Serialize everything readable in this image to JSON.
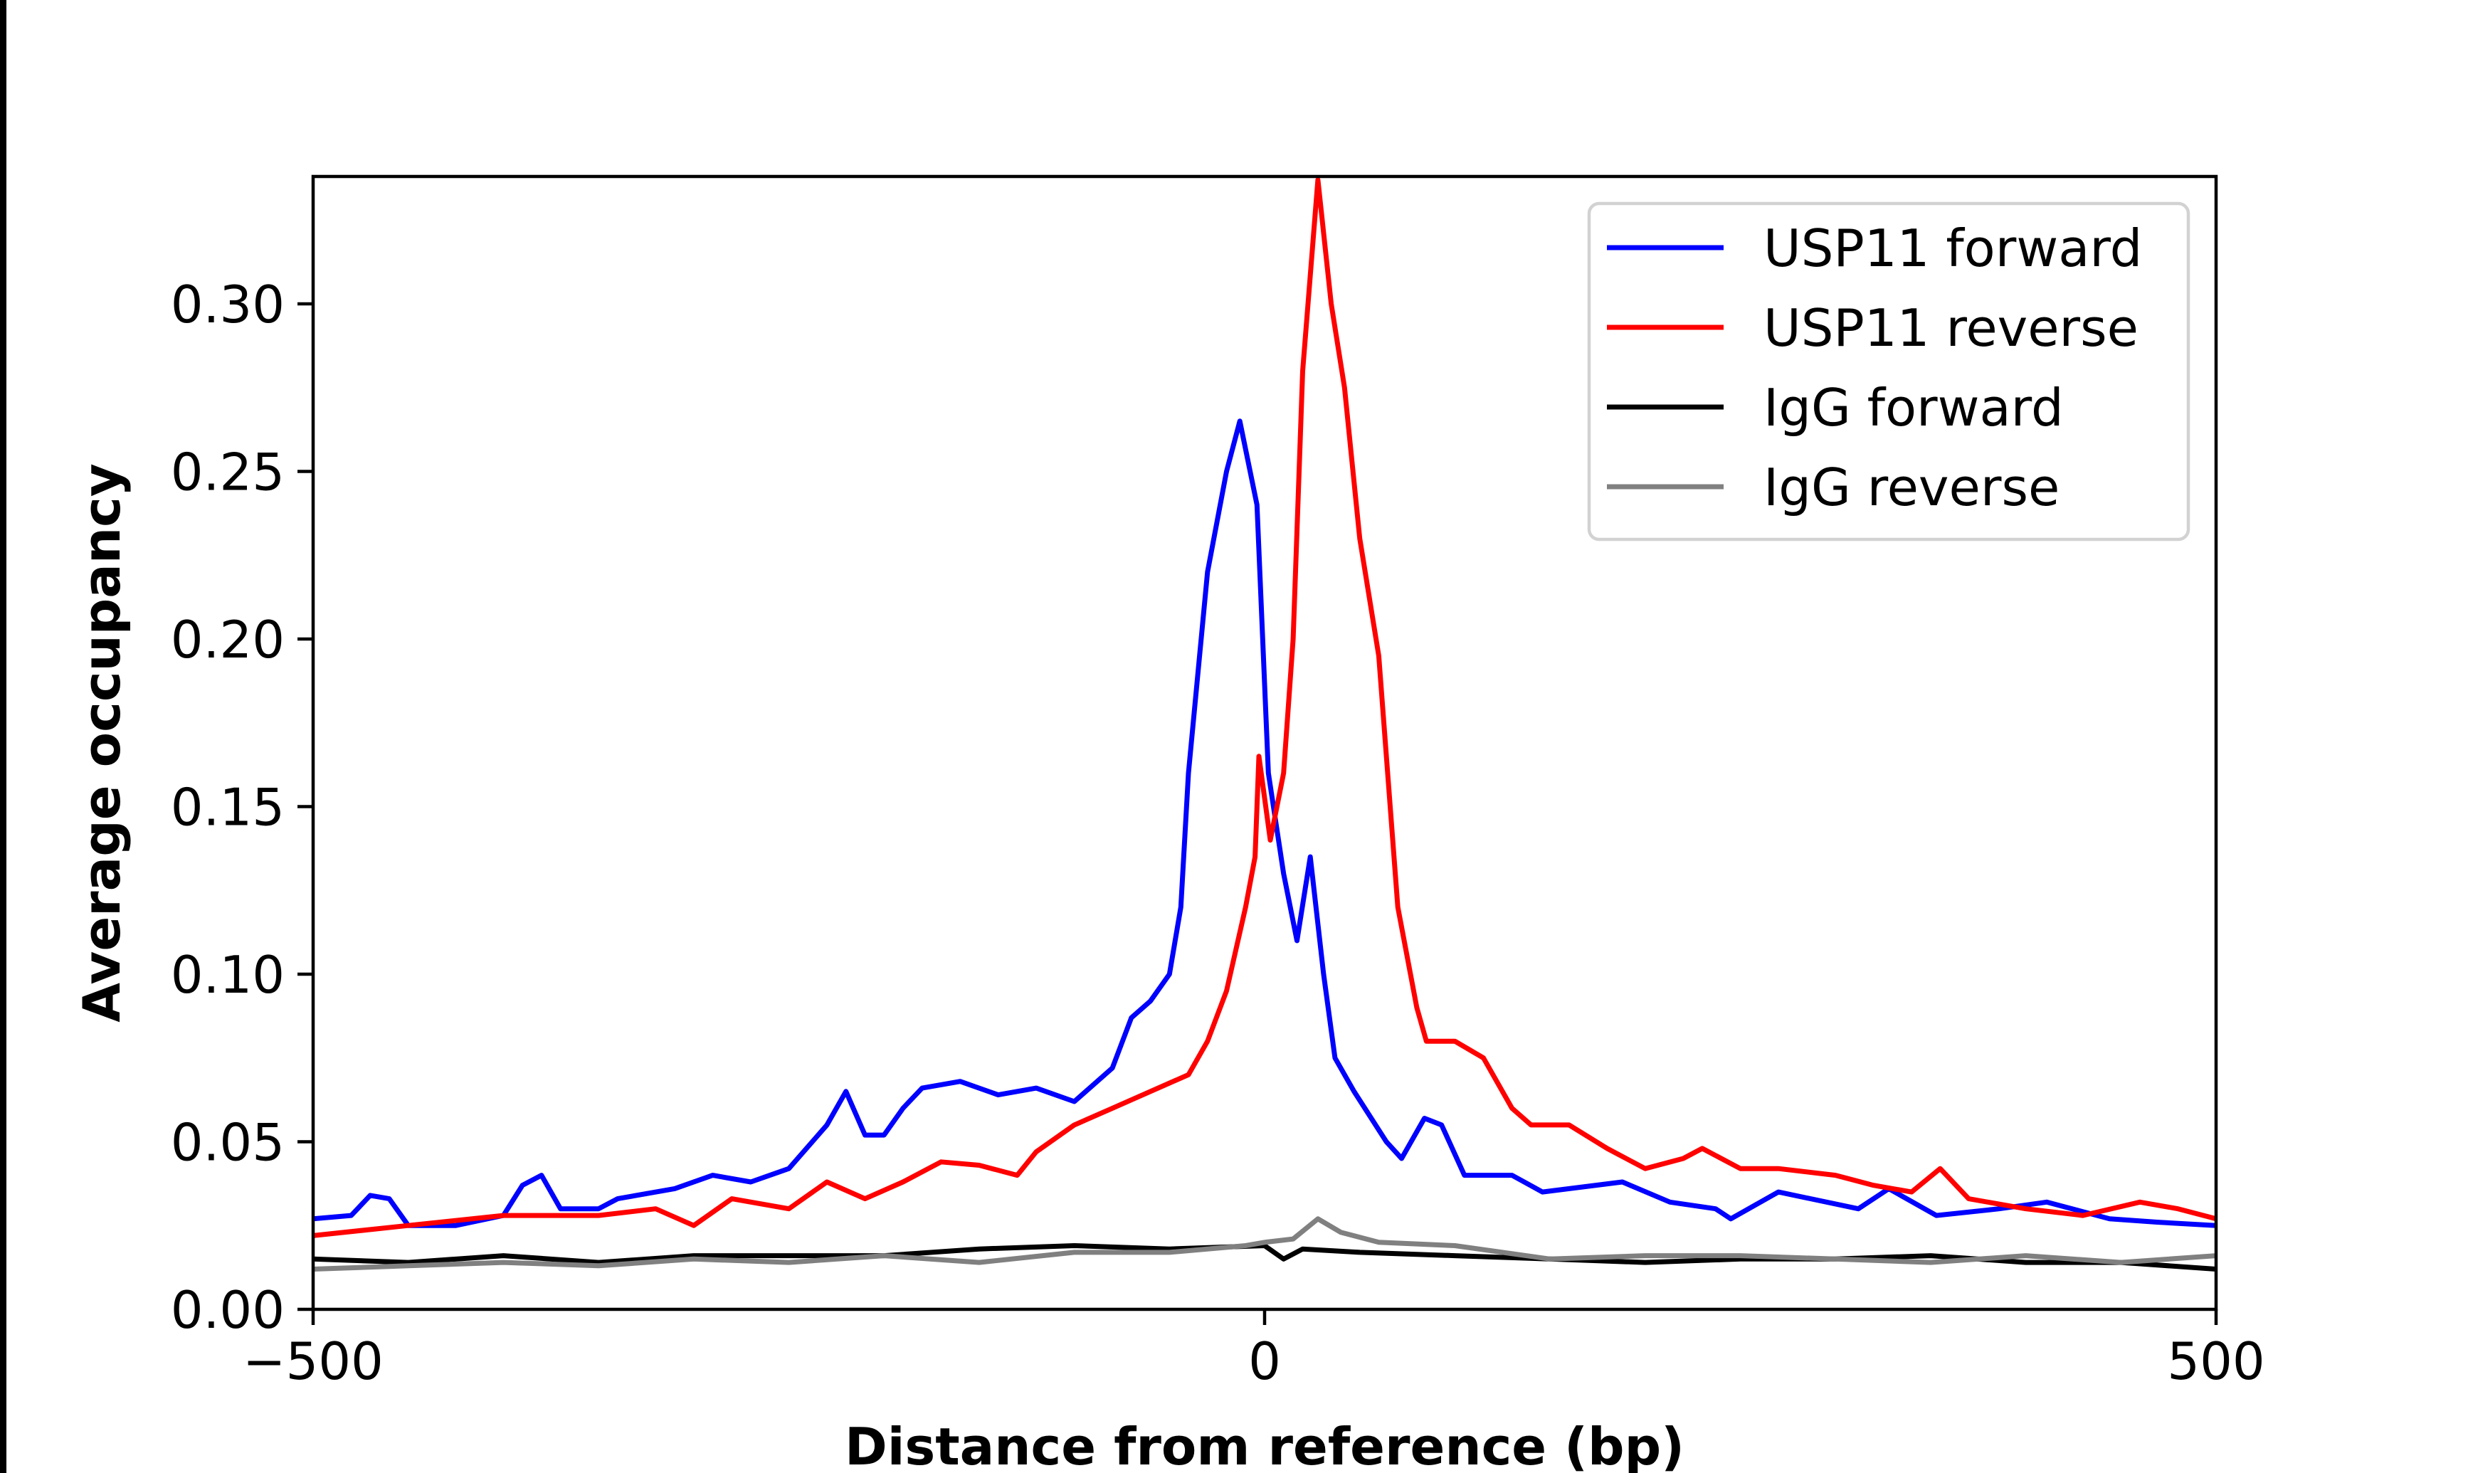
{
  "chart_data": {
    "type": "line",
    "title": "",
    "xlabel": "Distance from reference (bp)",
    "ylabel": "Average occupancy",
    "xlim": [
      -500,
      500
    ],
    "ylim": [
      0,
      0.338
    ],
    "xticks": [
      -500,
      0,
      500
    ],
    "xtick_labels": [
      "−500",
      "0",
      "500"
    ],
    "yticks": [
      0,
      0.05,
      0.1,
      0.15,
      0.2,
      0.25,
      0.3
    ],
    "ytick_labels": [
      "0.00",
      "0.05",
      "0.10",
      "0.15",
      "0.20",
      "0.25",
      "0.30"
    ],
    "grid": false,
    "legend_position": "top-right",
    "series": [
      {
        "name": "USP11 forward",
        "color": "#0000ff",
        "x": [
          -500,
          -480,
          -470,
          -460,
          -450,
          -425,
          -400,
          -390,
          -380,
          -370,
          -350,
          -340,
          -310,
          -290,
          -270,
          -250,
          -230,
          -220,
          -210,
          -200,
          -190,
          -180,
          -160,
          -140,
          -120,
          -100,
          -80,
          -70,
          -60,
          -50,
          -44,
          -40,
          -30,
          -20,
          -13,
          -4,
          2,
          10,
          17,
          24,
          31,
          37,
          47,
          64,
          72,
          84,
          93,
          105,
          130,
          146,
          188,
          213,
          237,
          245,
          270,
          312,
          328,
          353,
          386,
          411,
          444,
          469,
          500
        ],
        "y": [
          0.027,
          0.028,
          0.034,
          0.033,
          0.025,
          0.025,
          0.028,
          0.037,
          0.04,
          0.03,
          0.03,
          0.033,
          0.036,
          0.04,
          0.038,
          0.042,
          0.055,
          0.065,
          0.052,
          0.052,
          0.06,
          0.066,
          0.068,
          0.064,
          0.066,
          0.062,
          0.072,
          0.087,
          0.092,
          0.1,
          0.12,
          0.16,
          0.22,
          0.25,
          0.265,
          0.24,
          0.16,
          0.13,
          0.11,
          0.135,
          0.1,
          0.075,
          0.065,
          0.05,
          0.045,
          0.057,
          0.055,
          0.04,
          0.04,
          0.035,
          0.038,
          0.032,
          0.03,
          0.027,
          0.035,
          0.03,
          0.036,
          0.028,
          0.03,
          0.032,
          0.027,
          0.026,
          0.025
        ]
      },
      {
        "name": "USP11 reverse",
        "color": "#ff0000",
        "x": [
          -500,
          -450,
          -400,
          -350,
          -320,
          -300,
          -280,
          -250,
          -230,
          -210,
          -190,
          -170,
          -150,
          -130,
          -120,
          -100,
          -80,
          -60,
          -40,
          -30,
          -20,
          -10,
          -5,
          -3,
          3,
          10,
          15,
          20,
          28,
          35,
          42,
          50,
          60,
          70,
          80,
          85,
          100,
          115,
          130,
          140,
          160,
          180,
          200,
          220,
          230,
          250,
          270,
          300,
          320,
          340,
          355,
          370,
          400,
          430,
          460,
          480,
          500
        ],
        "y": [
          0.022,
          0.025,
          0.028,
          0.028,
          0.03,
          0.025,
          0.033,
          0.03,
          0.038,
          0.033,
          0.038,
          0.044,
          0.043,
          0.04,
          0.047,
          0.055,
          0.06,
          0.065,
          0.07,
          0.08,
          0.095,
          0.12,
          0.135,
          0.165,
          0.14,
          0.16,
          0.2,
          0.28,
          0.337,
          0.3,
          0.275,
          0.23,
          0.195,
          0.12,
          0.09,
          0.08,
          0.08,
          0.075,
          0.06,
          0.055,
          0.055,
          0.048,
          0.042,
          0.045,
          0.048,
          0.042,
          0.042,
          0.04,
          0.037,
          0.035,
          0.042,
          0.033,
          0.03,
          0.028,
          0.032,
          0.03,
          0.027
        ]
      },
      {
        "name": "IgG forward",
        "color": "#000000",
        "x": [
          -500,
          -450,
          -400,
          -350,
          -300,
          -250,
          -200,
          -150,
          -100,
          -50,
          0,
          10,
          20,
          50,
          100,
          150,
          200,
          250,
          300,
          350,
          400,
          450,
          500
        ],
        "y": [
          0.015,
          0.014,
          0.016,
          0.014,
          0.016,
          0.016,
          0.016,
          0.018,
          0.019,
          0.018,
          0.019,
          0.015,
          0.018,
          0.017,
          0.016,
          0.015,
          0.014,
          0.015,
          0.015,
          0.016,
          0.014,
          0.014,
          0.012
        ]
      },
      {
        "name": "IgG reverse",
        "color": "#808080",
        "x": [
          -500,
          -450,
          -400,
          -350,
          -300,
          -250,
          -200,
          -150,
          -100,
          -50,
          -10,
          0,
          15,
          28,
          40,
          60,
          100,
          150,
          200,
          250,
          300,
          350,
          400,
          450,
          500
        ],
        "y": [
          0.012,
          0.013,
          0.014,
          0.013,
          0.015,
          0.014,
          0.016,
          0.014,
          0.017,
          0.017,
          0.019,
          0.02,
          0.021,
          0.027,
          0.023,
          0.02,
          0.019,
          0.015,
          0.016,
          0.016,
          0.015,
          0.014,
          0.016,
          0.014,
          0.016
        ]
      }
    ]
  }
}
